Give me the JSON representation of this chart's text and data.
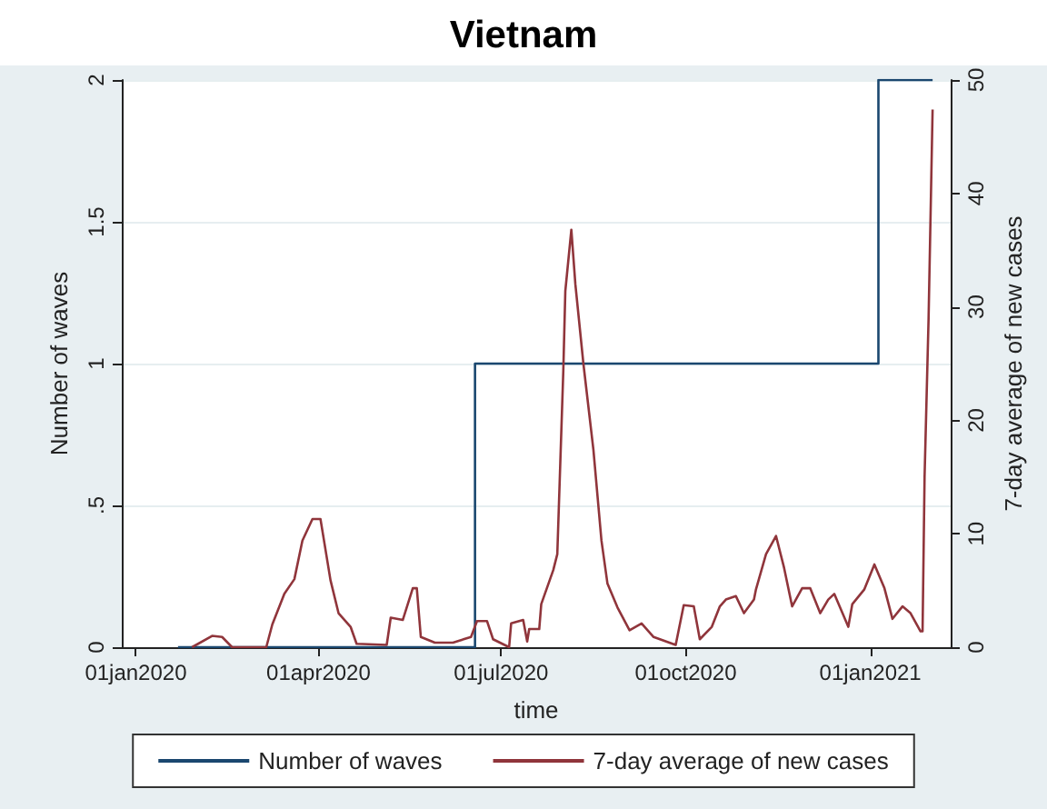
{
  "chart_data": {
    "type": "line",
    "title": "Vietnam",
    "xlabel": "time",
    "ylabel": "Number of waves",
    "y2label": "7-day average of new cases",
    "xlim": [
      "2019-12-25",
      "2021-02-10"
    ],
    "xticks": [
      {
        "value": "2020-01-01",
        "label": "01jan2020"
      },
      {
        "value": "2020-04-01",
        "label": "01apr2020"
      },
      {
        "value": "2020-07-01",
        "label": "01jul2020"
      },
      {
        "value": "2020-10-01",
        "label": "01oct2020"
      },
      {
        "value": "2021-01-01",
        "label": "01jan2021"
      }
    ],
    "ylim": [
      0,
      2
    ],
    "yticks": [
      0,
      {
        "value": 0.5,
        "label": ".5"
      },
      1,
      1.5,
      2
    ],
    "y2lim": [
      0,
      50
    ],
    "y2ticks": [
      0,
      10,
      20,
      30,
      40,
      50
    ],
    "grid": "y",
    "legend": "bottom",
    "marker": "none",
    "line_style": "solid",
    "series": [
      {
        "name": "Number of waves",
        "type": "step",
        "color": "#1a476f",
        "x": [
          "2020-01-22",
          "2020-06-18",
          "2021-01-05",
          "2021-02-01"
        ],
        "values": [
          0,
          1,
          2,
          2
        ]
      },
      {
        "name": "7-day average of new cases",
        "axis": "y2",
        "color": "#90353b",
        "x": [
          "2020-01-29",
          "2020-02-08",
          "2020-02-13",
          "2020-02-18",
          "2020-03-06",
          "2020-03-09",
          "2020-03-15",
          "2020-03-20",
          "2020-03-24",
          "2020-03-29",
          "2020-04-02",
          "2020-04-07",
          "2020-04-11",
          "2020-04-17",
          "2020-04-20",
          "2020-05-05",
          "2020-05-07",
          "2020-05-13",
          "2020-05-18",
          "2020-05-20",
          "2020-05-22",
          "2020-05-29",
          "2020-06-07",
          "2020-06-16",
          "2020-06-19",
          "2020-06-24",
          "2020-06-27",
          "2020-07-05",
          "2020-07-06",
          "2020-07-12",
          "2020-07-14",
          "2020-07-15",
          "2020-07-20",
          "2020-07-21",
          "2020-07-27",
          "2020-07-29",
          "2020-08-01",
          "2020-08-02",
          "2020-08-05",
          "2020-08-07",
          "2020-08-11",
          "2020-08-16",
          "2020-08-20",
          "2020-08-23",
          "2020-08-28",
          "2020-09-03",
          "2020-09-09",
          "2020-09-15",
          "2020-09-26",
          "2020-09-30",
          "2020-10-05",
          "2020-10-08",
          "2020-10-14",
          "2020-10-18",
          "2020-10-21",
          "2020-10-26",
          "2020-10-30",
          "2020-11-04",
          "2020-11-05",
          "2020-11-10",
          "2020-11-15",
          "2020-11-19",
          "2020-11-23",
          "2020-11-28",
          "2020-12-02",
          "2020-12-07",
          "2020-12-11",
          "2020-12-14",
          "2020-12-21",
          "2020-12-23",
          "2020-12-29",
          "2021-01-03",
          "2021-01-08",
          "2021-01-12",
          "2021-01-17",
          "2021-01-21",
          "2021-01-26",
          "2021-01-27",
          "2021-01-28",
          "2021-01-30",
          "2021-02-01"
        ],
        "values": [
          0,
          1.0,
          0.9,
          0,
          0,
          2,
          4.7,
          6,
          9.4,
          11.3,
          11.3,
          5.9,
          3,
          1.8,
          0.3,
          0.2,
          2.6,
          2.4,
          5.2,
          5.2,
          0.9,
          0.4,
          0.4,
          0.9,
          2.3,
          2.3,
          0.7,
          0,
          2.1,
          2.4,
          0.5,
          1.6,
          1.6,
          3.8,
          6.8,
          8.2,
          24.4,
          31.4,
          36.8,
          32,
          25,
          17.4,
          9.4,
          5.6,
          3.5,
          1.5,
          2.1,
          0.9,
          0.2,
          3.7,
          3.6,
          0.7,
          1.8,
          3.6,
          4.2,
          4.5,
          3.0,
          4.2,
          5.1,
          8.2,
          9.8,
          7,
          3.6,
          5.2,
          5.2,
          3,
          4.2,
          4.7,
          1.8,
          3.8,
          5.1,
          7.3,
          5.2,
          2.5,
          3.6,
          3.0,
          1.4,
          1.4,
          15,
          29,
          47.4
        ]
      }
    ]
  }
}
